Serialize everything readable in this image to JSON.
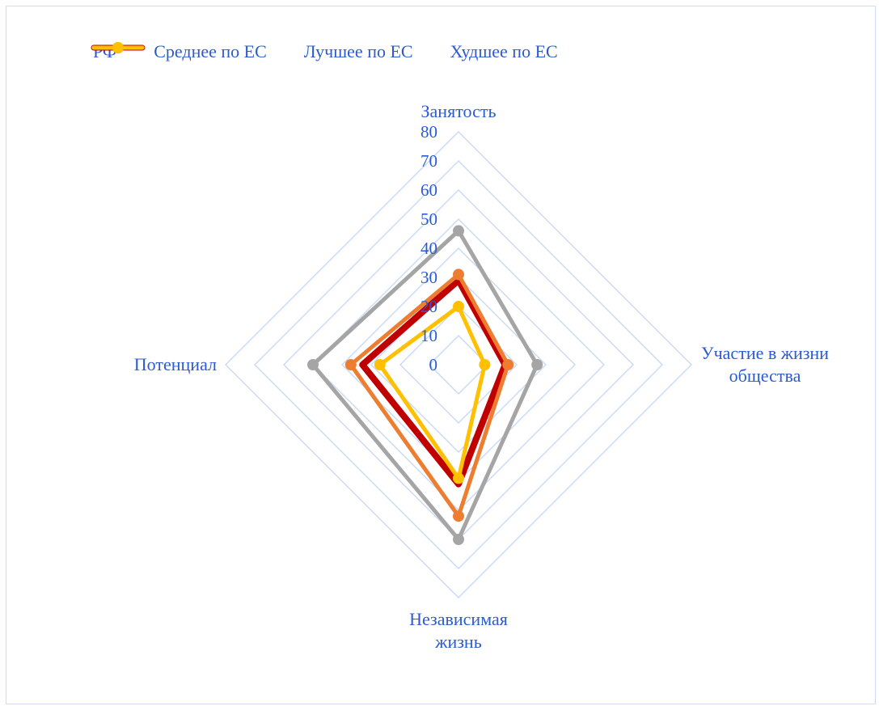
{
  "chart_data": {
    "type": "radar",
    "categories": [
      "Занятость",
      "Участие в жизни общества",
      "Независимая жизнь",
      "Потенциал"
    ],
    "category_label_lines": [
      [
        "Занятость"
      ],
      [
        "Участие в жизни",
        "общества"
      ],
      [
        "Независимая",
        "жизнь"
      ],
      [
        "Потенциал"
      ]
    ],
    "series": [
      {
        "name": "РФ",
        "values": [
          29,
          16,
          41,
          33
        ],
        "color": "#c00000",
        "marker": "none",
        "line_weight": "thick"
      },
      {
        "name": "Среднее по ЕС",
        "values": [
          31,
          17,
          52,
          37
        ],
        "color": "#ed7d31",
        "marker": "circle",
        "line_weight": "normal"
      },
      {
        "name": "Лучшее по ЕС",
        "values": [
          46,
          27,
          60,
          50
        ],
        "color": "#a5a5a5",
        "marker": "circle",
        "line_weight": "normal"
      },
      {
        "name": "Худшее по ЕС",
        "values": [
          20,
          9,
          39,
          27
        ],
        "color": "#ffc000",
        "marker": "circle",
        "line_weight": "normal"
      }
    ],
    "scale": {
      "min": 0,
      "max": 80,
      "step": 10,
      "labels": [
        "0",
        "10",
        "20",
        "30",
        "40",
        "50",
        "60",
        "70",
        "80"
      ]
    },
    "grid": true,
    "legend": "top",
    "colors": {
      "grid": "#c9d8f5",
      "text": "#2b5bd1",
      "frame": "#cfdcf2"
    }
  }
}
